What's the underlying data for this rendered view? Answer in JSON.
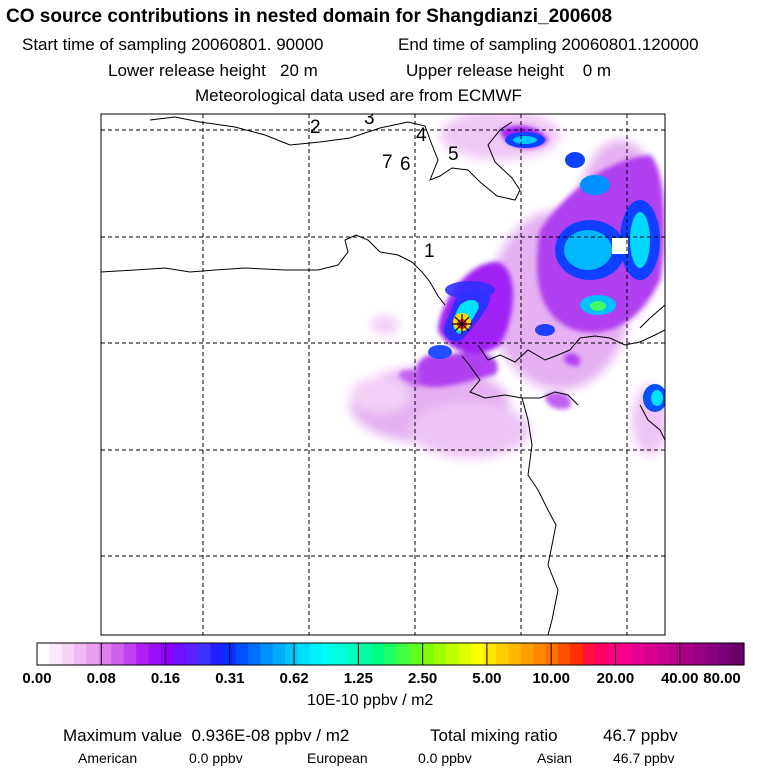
{
  "title": "CO  source contributions in nested domain for Shangdianzi_200608",
  "sampling": {
    "start_label": "Start time of sampling",
    "start_value": "20060801. 90000",
    "end_label": "End time of sampling",
    "end_value": "20060801.120000"
  },
  "release": {
    "lower_label": "Lower release height",
    "lower_value": "20 m",
    "upper_label": "Upper release height",
    "upper_value": "0 m"
  },
  "met_note": "Meteorological data used are from ECMWF",
  "map_labels": [
    "1",
    "2",
    "3",
    "4",
    "5",
    "6",
    "7"
  ],
  "colorbar": {
    "ticks": [
      "0.00",
      "0.08",
      "0.16",
      "0.31",
      "0.62",
      "1.25",
      "2.50",
      "5.00",
      "10.00",
      "20.00",
      "40.00",
      "80.00"
    ],
    "unit": "10E-10 ppbv / m2",
    "colors": [
      "#ffffff",
      "#fbe8fb",
      "#f6d2f6",
      "#f0b8f4",
      "#e99ef2",
      "#de7ef0",
      "#d060f0",
      "#c040f2",
      "#b020f4",
      "#9a10f6",
      "#8a00ff",
      "#7010ff",
      "#5a20ff",
      "#4030ff",
      "#2020ff",
      "#0a30ff",
      "#0050ff",
      "#0070ff",
      "#0090ff",
      "#00aaff",
      "#00c4ff",
      "#00ddff",
      "#00f0ff",
      "#00fff0",
      "#00ffd8",
      "#00ffc0",
      "#00ffa0",
      "#00ff80",
      "#20ff60",
      "#40ff40",
      "#60ff20",
      "#80ff00",
      "#a0ff00",
      "#c0ff00",
      "#e0ff00",
      "#ffff00",
      "#ffe800",
      "#ffd000",
      "#ffb800",
      "#ffa000",
      "#ff8800",
      "#ff7000",
      "#ff5000",
      "#ff3000",
      "#ff1040",
      "#ff0060",
      "#ff0080",
      "#f8008c",
      "#e80090",
      "#d80090",
      "#c80090",
      "#b8008c",
      "#a80088",
      "#980084",
      "#880080",
      "#780078",
      "#680068"
    ]
  },
  "summary": {
    "max_label": "Maximum value",
    "max_value": "0.936E-08 ppbv / m2",
    "total_label": "Total mixing ratio",
    "total_value": "46.7 ppbv"
  },
  "regions": [
    {
      "name": "American",
      "value": "0.0 ppbv"
    },
    {
      "name": "European",
      "value": "0.0 ppbv"
    },
    {
      "name": "Asian",
      "value": "46.7 ppbv"
    }
  ],
  "colors": {
    "grid": "#000000",
    "coast": "#000000",
    "station": "#cc0000"
  }
}
